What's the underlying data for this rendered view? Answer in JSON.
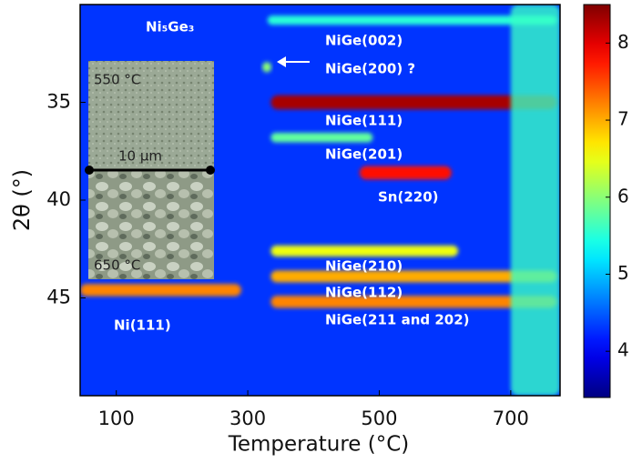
{
  "chart_data": {
    "type": "heatmap",
    "x_label": "Temperature (°C)",
    "y_label": "2θ (°)",
    "xlim": [
      45,
      775
    ],
    "ylim": [
      30,
      50
    ],
    "y_inverted": true,
    "xticks": [
      100,
      300,
      500,
      700
    ],
    "yticks": [
      35,
      40,
      45
    ],
    "colormap": "jet",
    "clim": [
      3.4,
      8.5
    ],
    "cticks": [
      4,
      5,
      6,
      7,
      8
    ],
    "background": 4.3,
    "streaks": [
      {
        "temperature": [
          45,
          290
        ],
        "two_theta": 44.6,
        "intensity": 7.2
      },
      {
        "temperature": [
          335,
          770
        ],
        "two_theta": 35.0,
        "intensity": 8.3
      },
      {
        "temperature": [
          335,
          490
        ],
        "two_theta": 36.8,
        "intensity": 5.8
      },
      {
        "temperature": [
          470,
          610
        ],
        "two_theta": 38.6,
        "intensity": 7.8
      },
      {
        "temperature": [
          335,
          620
        ],
        "two_theta": 42.6,
        "intensity": 6.5
      },
      {
        "temperature": [
          335,
          770
        ],
        "two_theta": 43.9,
        "intensity": 7.0
      },
      {
        "temperature": [
          335,
          770
        ],
        "two_theta": 45.2,
        "intensity": 7.2
      },
      {
        "temperature": [
          330,
          770
        ],
        "two_theta": 30.8,
        "intensity": 5.5
      },
      {
        "temperature": [
          322,
          336
        ],
        "two_theta": 33.2,
        "intensity": 6.0
      },
      {
        "temperature": [
          700,
          775
        ],
        "two_theta": 40.0,
        "intensity": 5.6
      }
    ],
    "annotations": [
      "Ni₅Ge₃",
      "NiGe(002)",
      "NiGe(200) ?",
      "NiGe(111)",
      "NiGe(201)",
      "Sn(220)",
      "NiGe(210)",
      "NiGe(112)",
      "NiGe(211 and 202)",
      "Ni(111)"
    ],
    "inset": {
      "labels": [
        "550 °C",
        "650 °C"
      ],
      "scale_bar": "10 μm"
    }
  }
}
